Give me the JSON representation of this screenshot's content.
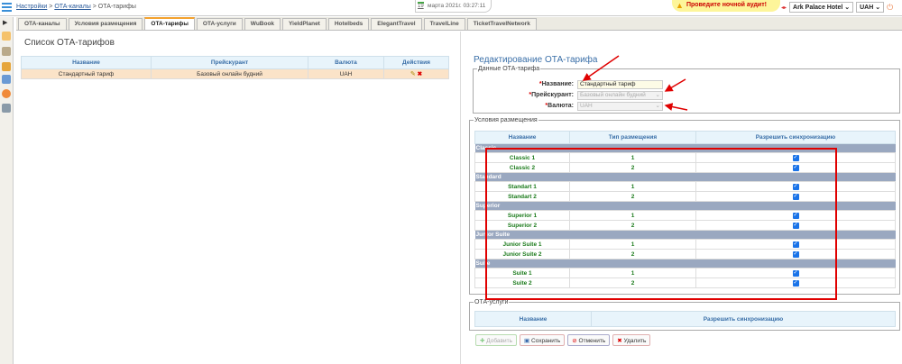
{
  "breadcrumb": {
    "home": "Настройки",
    "section": "ОТА-каналы",
    "current": "ОТА-тарифы",
    "sep": " > "
  },
  "date": {
    "day": "19",
    "text": "марта 2021г.  03:27:11"
  },
  "audit": "Проведите ночной аудит!",
  "hotel": "Ark Palace Hotel",
  "currency": "UAH",
  "tabs": [
    "ОТА-каналы",
    "Условия размещения",
    "ОТА-тарифы",
    "ОТА-услуги",
    "WuBook",
    "YieldPlanet",
    "Hotelbeds",
    "ElegantTravel",
    "TravelLine",
    "TicketTravelNetwork"
  ],
  "active_tab": "ОТА-тарифы",
  "list": {
    "title": "Список ОТА-тарифов",
    "columns": [
      "Название",
      "Прейскурант",
      "Валюта",
      "Действия"
    ],
    "rows": [
      {
        "name": "Стандартный тариф",
        "pricelist": "Базовый онлайн будний",
        "currency": "UAH"
      }
    ]
  },
  "edit": {
    "title": "Редактирование ОТА-тарифа",
    "fieldset": "Данные ОТА-тарифа",
    "name_label": "Название:",
    "name_value": "Стандартный тариф",
    "pricelist_label": "Прейскурант:",
    "pricelist_value": "Базовый онлайн будний",
    "currency_label": "Валюта:",
    "currency_value": "UAH"
  },
  "conditions": {
    "legend": "Условия размещения",
    "columns": [
      "Название",
      "Тип размещения",
      "Разрешить синхронизацию"
    ],
    "groups": [
      {
        "name": "Classic",
        "rows": [
          {
            "name": "Classic 1",
            "type": "1",
            "sync": true
          },
          {
            "name": "Classic 2",
            "type": "2",
            "sync": true
          }
        ]
      },
      {
        "name": "Standard",
        "rows": [
          {
            "name": "Standart 1",
            "type": "1",
            "sync": true
          },
          {
            "name": "Standart 2",
            "type": "2",
            "sync": true
          }
        ]
      },
      {
        "name": "Superior",
        "rows": [
          {
            "name": "Superior 1",
            "type": "1",
            "sync": true
          },
          {
            "name": "Superior 2",
            "type": "2",
            "sync": true
          }
        ]
      },
      {
        "name": "Junior Suite",
        "rows": [
          {
            "name": "Junior Suite 1",
            "type": "1",
            "sync": true
          },
          {
            "name": "Junior Suite 2",
            "type": "2",
            "sync": true
          }
        ]
      },
      {
        "name": "Suite",
        "rows": [
          {
            "name": "Suite 1",
            "type": "1",
            "sync": true
          },
          {
            "name": "Suite 2",
            "type": "2",
            "sync": true
          }
        ]
      }
    ]
  },
  "services": {
    "legend": "ОТА-услуги",
    "columns": [
      "Название",
      "Разрешить синхронизацию"
    ]
  },
  "buttons": {
    "add": "Добавить",
    "save": "Сохранить",
    "cancel": "Отменить",
    "delete": "Удалить"
  },
  "colors": {
    "annotation": "#e00000",
    "accent": "#f3a12d",
    "group_row": "#9aa8c0"
  }
}
